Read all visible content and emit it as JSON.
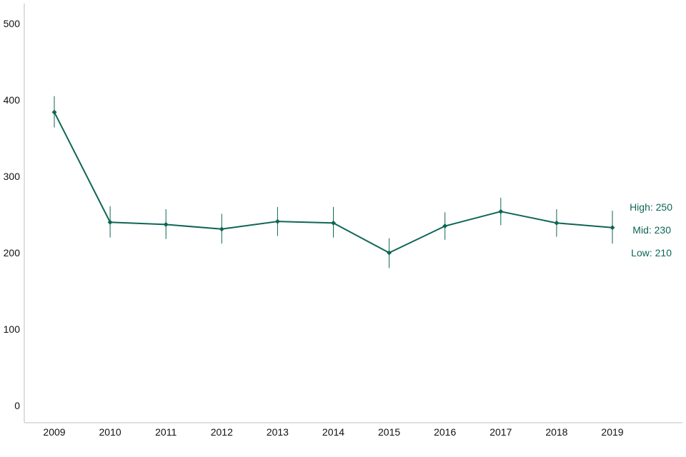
{
  "chart_data": {
    "type": "line",
    "title": "",
    "xlabel": "",
    "ylabel": "",
    "x": [
      "2009",
      "2010",
      "2011",
      "2012",
      "2013",
      "2014",
      "2015",
      "2016",
      "2017",
      "2018",
      "2019"
    ],
    "ylim": [
      0,
      500
    ],
    "yticks": [
      "0",
      "100",
      "200",
      "300",
      "400",
      "500"
    ],
    "series": [
      {
        "values": [
          384,
          240,
          237,
          231,
          241,
          239,
          200,
          235,
          254,
          239,
          233
        ],
        "lower": [
          364,
          220,
          218,
          212,
          222,
          220,
          180,
          217,
          236,
          221,
          212
        ],
        "upper": [
          405,
          261,
          257,
          251,
          260,
          260,
          219,
          253,
          272,
          257,
          255
        ]
      }
    ],
    "annotations": {
      "high": "High: 250",
      "mid": "Mid: 230",
      "low": "Low: 210"
    },
    "colors": {
      "series": "#0e6655",
      "axis": "#bfbfbf"
    },
    "grid": false
  }
}
